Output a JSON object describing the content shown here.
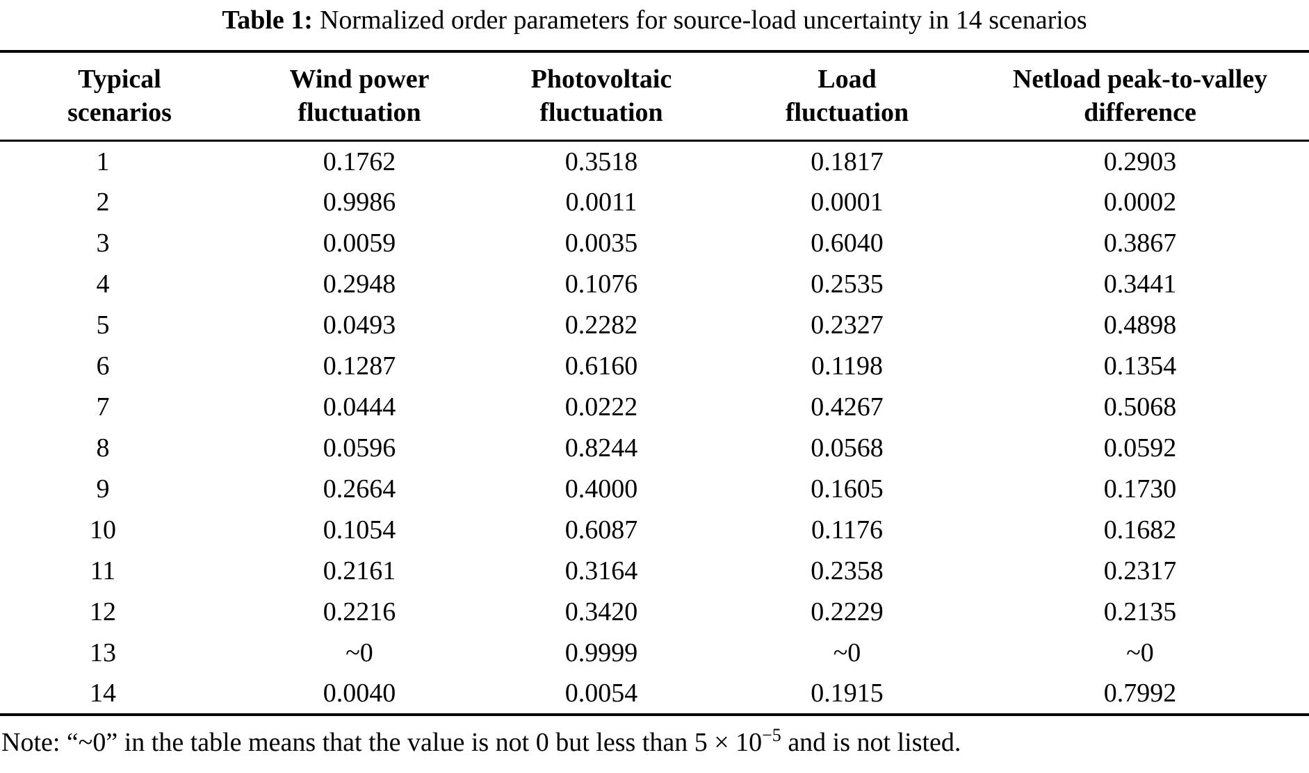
{
  "caption": {
    "label": "Table 1:",
    "text": "Normalized order parameters for source-load uncertainty in 14 scenarios"
  },
  "table": {
    "headers": [
      {
        "line1": "Typical",
        "line2": "scenarios"
      },
      {
        "line1": "Wind power",
        "line2": "fluctuation"
      },
      {
        "line1": "Photovoltaic",
        "line2": "fluctuation"
      },
      {
        "line1": "Load",
        "line2": "fluctuation"
      },
      {
        "line1": "Netload peak-to-valley",
        "line2": "difference"
      }
    ],
    "rows": [
      [
        "1",
        "0.1762",
        "0.3518",
        "0.1817",
        "0.2903"
      ],
      [
        "2",
        "0.9986",
        "0.0011",
        "0.0001",
        "0.0002"
      ],
      [
        "3",
        "0.0059",
        "0.0035",
        "0.6040",
        "0.3867"
      ],
      [
        "4",
        "0.2948",
        "0.1076",
        "0.2535",
        "0.3441"
      ],
      [
        "5",
        "0.0493",
        "0.2282",
        "0.2327",
        "0.4898"
      ],
      [
        "6",
        "0.1287",
        "0.6160",
        "0.1198",
        "0.1354"
      ],
      [
        "7",
        "0.0444",
        "0.0222",
        "0.4267",
        "0.5068"
      ],
      [
        "8",
        "0.0596",
        "0.8244",
        "0.0568",
        "0.0592"
      ],
      [
        "9",
        "0.2664",
        "0.4000",
        "0.1605",
        "0.1730"
      ],
      [
        "10",
        "0.1054",
        "0.6087",
        "0.1176",
        "0.1682"
      ],
      [
        "11",
        "0.2161",
        "0.3164",
        "0.2358",
        "0.2317"
      ],
      [
        "12",
        "0.2216",
        "0.3420",
        "0.2229",
        "0.2135"
      ],
      [
        "13",
        "~0",
        "0.9999",
        "~0",
        "~0"
      ],
      [
        "14",
        "0.0040",
        "0.0054",
        "0.1915",
        "0.7992"
      ]
    ]
  },
  "note": {
    "prefix": "Note: “~0” in the table means that the value is not 0 but less than 5 × 10",
    "superscript": "−5",
    "suffix": " and is not listed."
  },
  "colors": {
    "text": "#000000",
    "background": "#ffffff",
    "rule": "#000000"
  }
}
